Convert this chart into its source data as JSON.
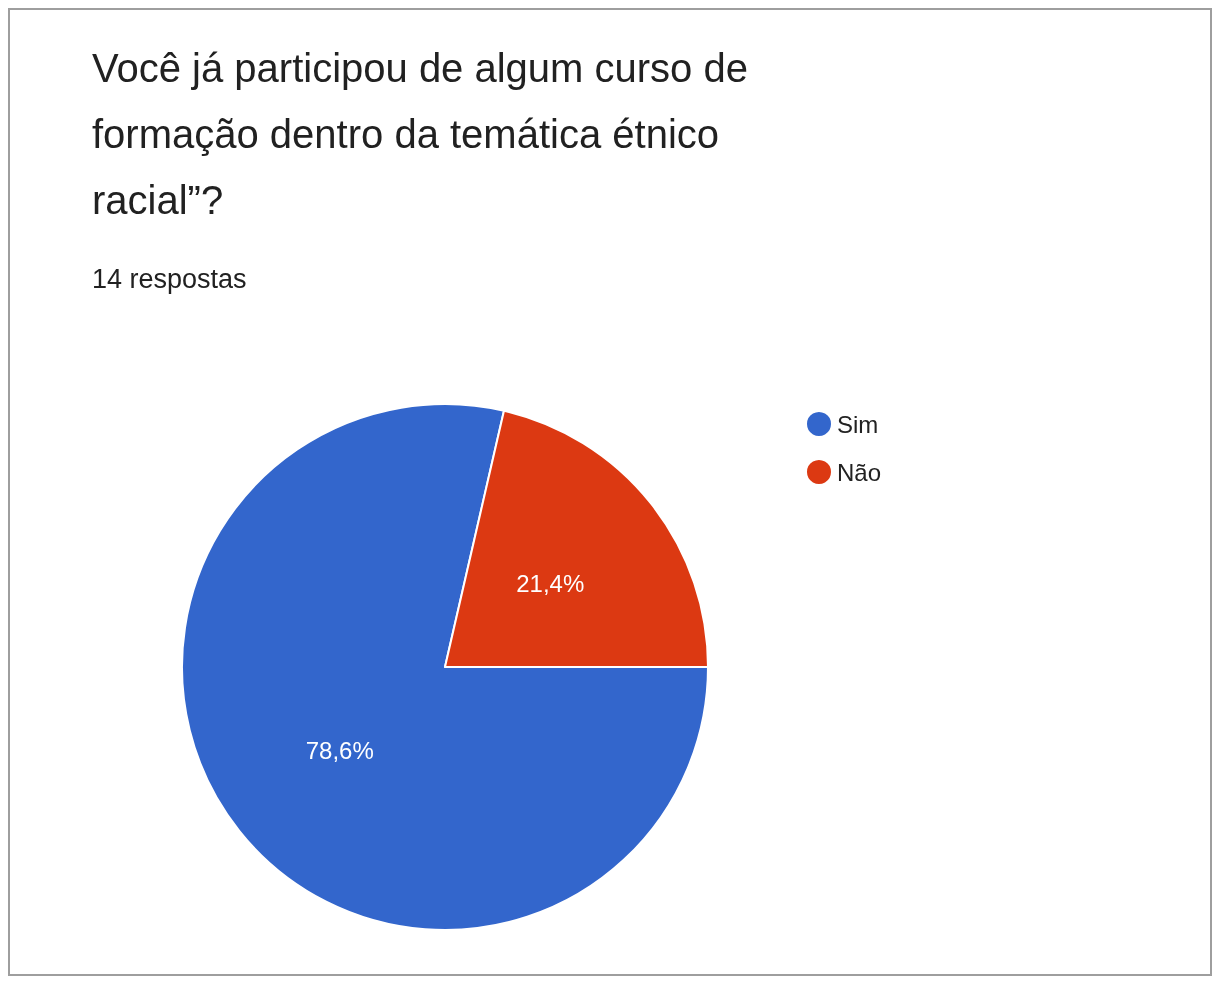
{
  "chart_data": {
    "type": "pie",
    "title": "Você já participou de algum curso de formação dentro da temática étnico racial”?",
    "subtitle": "14 respostas",
    "categories": [
      "Sim",
      "Não"
    ],
    "values": [
      78.6,
      21.4
    ],
    "colors": [
      "#3366cc",
      "#dc3912"
    ],
    "value_labels": [
      "78,6%",
      "21,4%"
    ],
    "legend": "top right"
  }
}
